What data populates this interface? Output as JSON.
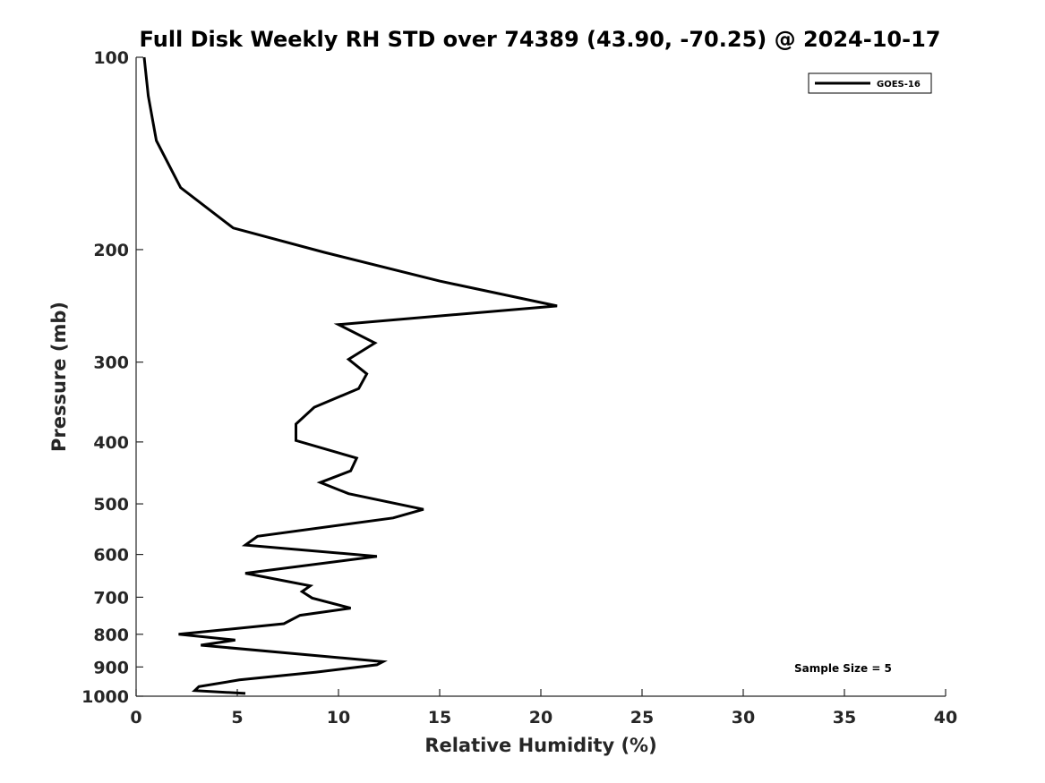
{
  "chart_data": {
    "type": "line",
    "title": "Full Disk Weekly RH STD over 74389 (43.90, -70.25) @ 2024-10-17",
    "xlabel": "Relative Humidity (%)",
    "ylabel": "Pressure (mb)",
    "xlim": [
      0,
      40
    ],
    "ylim": [
      100,
      1000
    ],
    "y_scale": "log",
    "y_reversed": true,
    "x_ticks": [
      0,
      5,
      10,
      15,
      20,
      25,
      30,
      35,
      40
    ],
    "y_ticks": [
      100,
      200,
      300,
      400,
      500,
      600,
      700,
      800,
      900,
      1000
    ],
    "grid": false,
    "legend": {
      "position": "top-right",
      "entries": [
        "GOES-16"
      ]
    },
    "annotation": "Sample Size = 5",
    "series": [
      {
        "name": "GOES-16",
        "color": "#000000",
        "points": [
          [
            0.4,
            100
          ],
          [
            0.6,
            115
          ],
          [
            1.0,
            135
          ],
          [
            2.2,
            160
          ],
          [
            4.8,
            185
          ],
          [
            9.3,
            202
          ],
          [
            15.0,
            224
          ],
          [
            20.8,
            245
          ],
          [
            10.0,
            262
          ],
          [
            11.8,
            280
          ],
          [
            10.5,
            297
          ],
          [
            11.4,
            313
          ],
          [
            11.0,
            330
          ],
          [
            8.8,
            353
          ],
          [
            7.9,
            375
          ],
          [
            7.9,
            398
          ],
          [
            10.9,
            424
          ],
          [
            10.6,
            444
          ],
          [
            9.1,
            463
          ],
          [
            10.5,
            482
          ],
          [
            14.2,
            510
          ],
          [
            12.7,
            526
          ],
          [
            6.0,
            562
          ],
          [
            5.4,
            580
          ],
          [
            11.9,
            604
          ],
          [
            5.4,
            642
          ],
          [
            8.6,
            672
          ],
          [
            8.2,
            686
          ],
          [
            8.7,
            702
          ],
          [
            10.6,
            728
          ],
          [
            8.1,
            747
          ],
          [
            7.3,
            770
          ],
          [
            2.1,
            800
          ],
          [
            4.9,
            817
          ],
          [
            3.2,
            832
          ],
          [
            12.2,
            883
          ],
          [
            11.9,
            893
          ],
          [
            8.9,
            917
          ],
          [
            5.1,
            943
          ],
          [
            3.1,
            966
          ],
          [
            2.9,
            980
          ],
          [
            5.4,
            990
          ]
        ]
      }
    ]
  }
}
